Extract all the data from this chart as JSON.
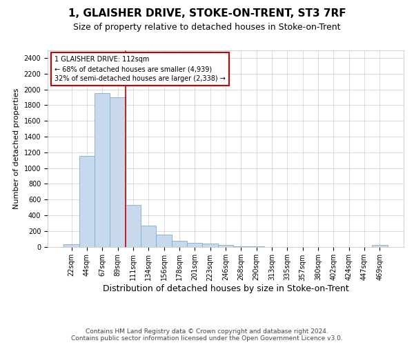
{
  "title": "1, GLAISHER DRIVE, STOKE-ON-TRENT, ST3 7RF",
  "subtitle": "Size of property relative to detached houses in Stoke-on-Trent",
  "xlabel": "Distribution of detached houses by size in Stoke-on-Trent",
  "ylabel": "Number of detached properties",
  "footer_line1": "Contains HM Land Registry data © Crown copyright and database right 2024.",
  "footer_line2": "Contains public sector information licensed under the Open Government Licence v3.0.",
  "bin_labels": [
    "22sqm",
    "44sqm",
    "67sqm",
    "89sqm",
    "111sqm",
    "134sqm",
    "156sqm",
    "178sqm",
    "201sqm",
    "223sqm",
    "246sqm",
    "268sqm",
    "290sqm",
    "313sqm",
    "335sqm",
    "357sqm",
    "380sqm",
    "402sqm",
    "424sqm",
    "447sqm",
    "469sqm"
  ],
  "bar_values": [
    30,
    1150,
    1950,
    1900,
    530,
    270,
    155,
    75,
    45,
    40,
    25,
    5,
    5,
    0,
    0,
    0,
    0,
    0,
    0,
    0,
    20
  ],
  "bar_color": "#c8d9ee",
  "bar_edge_color": "#7aafd4",
  "highlight_bar_index": 4,
  "highlight_color": "#cc0000",
  "annotation_text": "1 GLAISHER DRIVE: 112sqm\n← 68% of detached houses are smaller (4,939)\n32% of semi-detached houses are larger (2,338) →",
  "annotation_box_color": "#cc0000",
  "ylim": [
    0,
    2500
  ],
  "yticks": [
    0,
    200,
    400,
    600,
    800,
    1000,
    1200,
    1400,
    1600,
    1800,
    2000,
    2200,
    2400
  ],
  "title_fontsize": 11,
  "subtitle_fontsize": 9,
  "xlabel_fontsize": 9,
  "ylabel_fontsize": 8,
  "tick_fontsize": 7,
  "footer_fontsize": 6.5,
  "annotation_fontsize": 7
}
